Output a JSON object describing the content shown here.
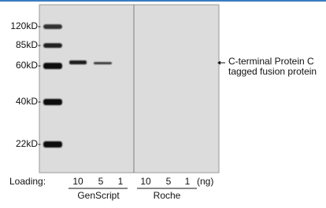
{
  "markers": [
    "120kD-",
    "85kD-",
    "60kD-",
    "40kD-",
    "22kD-"
  ],
  "annotation": [
    "C-terminal Protein C",
    "tagged fusion protein"
  ],
  "loading": {
    "label": "Loading:",
    "lanes": [
      "10",
      "5",
      "1",
      "10",
      "5",
      "1"
    ],
    "unit": "(ng)",
    "groups": [
      "GenScript",
      "Roche"
    ]
  }
}
